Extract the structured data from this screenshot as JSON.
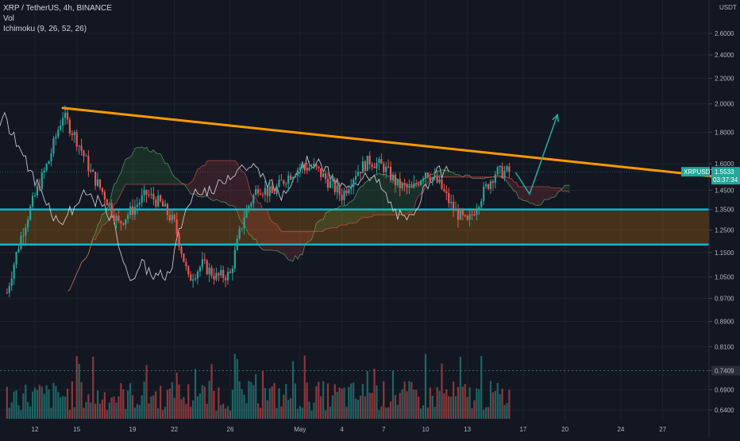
{
  "legend": {
    "symbol_line": "XRP / TetherUS, 4h, BINANCE",
    "volume_label": "Vol",
    "ichimoku_label": "Ichimoku (9, 26, 52, 26)"
  },
  "colors": {
    "background": "#131722",
    "up": "#26a69a",
    "down": "#ef5350",
    "trendline": "#ff9800",
    "support": "#00bcd4",
    "arrow": "#26a69a",
    "zone_fill": "#ff9800"
  },
  "price_tags": {
    "currency": "USDT",
    "symbol": "XRPUSDT",
    "last_price": "1.5533",
    "countdown": "03:37:34",
    "volume_level": "0.7409"
  },
  "chart_data": {
    "type": "candlestick",
    "title": "XRP / TetherUS, 4h, BINANCE",
    "y_scale": "log",
    "y_ticks": [
      "2.6000",
      "2.4000",
      "2.2000",
      "2.0000",
      "1.8000",
      "1.6000",
      "1.4500",
      "1.3500",
      "1.2500",
      "1.1500",
      "1.0500",
      "0.9700",
      "0.8900",
      "0.8100",
      "0.7409",
      "0.6900",
      "0.6400"
    ],
    "y_tick_values": [
      2.6,
      2.4,
      2.2,
      2.0,
      1.8,
      1.6,
      1.45,
      1.35,
      1.25,
      1.15,
      1.05,
      0.97,
      0.89,
      0.81,
      0.7409,
      0.69,
      0.64
    ],
    "x_ticks": [
      "12",
      "15",
      "19",
      "22",
      "26",
      "May",
      "4",
      "7",
      "10",
      "13",
      "17",
      "20",
      "24",
      "27"
    ],
    "last_price": 1.5533,
    "close_path": [
      [
        "Apr 10",
        0.99
      ],
      [
        "Apr 11",
        1.22
      ],
      [
        "Apr 12",
        1.42
      ],
      [
        "Apr 13",
        1.62
      ],
      [
        "Apr 14",
        1.92
      ],
      [
        "Apr 15",
        1.75
      ],
      [
        "Apr 16",
        1.55
      ],
      [
        "Apr 17",
        1.42
      ],
      [
        "Apr 18",
        1.28
      ],
      [
        "Apr 19",
        1.35
      ],
      [
        "Apr 20",
        1.43
      ],
      [
        "Apr 21",
        1.38
      ],
      [
        "Apr 22",
        1.28
      ],
      [
        "Apr 23",
        1.04
      ],
      [
        "Apr 24",
        1.1
      ],
      [
        "Apr 25",
        1.05
      ],
      [
        "Apr 26",
        1.06
      ],
      [
        "Apr 27",
        1.32
      ],
      [
        "Apr 28",
        1.47
      ],
      [
        "Apr 29",
        1.43
      ],
      [
        "Apr 30",
        1.52
      ],
      [
        "May 1",
        1.58
      ],
      [
        "May 2",
        1.58
      ],
      [
        "May 3",
        1.5
      ],
      [
        "May 4",
        1.42
      ],
      [
        "May 5",
        1.55
      ],
      [
        "May 6",
        1.62
      ],
      [
        "May 7",
        1.58
      ],
      [
        "May 8",
        1.48
      ],
      [
        "May 9",
        1.45
      ],
      [
        "May 10",
        1.56
      ],
      [
        "May 11",
        1.48
      ],
      [
        "May 12",
        1.35
      ],
      [
        "May 13",
        1.28
      ],
      [
        "May 14",
        1.42
      ],
      [
        "May 15",
        1.55
      ],
      [
        "May 16",
        1.5533
      ]
    ],
    "annotations": {
      "descending_trendline": {
        "from": [
          "Apr 14",
          1.97
        ],
        "to": [
          "May 27",
          1.52
        ]
      },
      "support_zone": {
        "top": 1.35,
        "bottom": 1.185
      },
      "projection_arrow": [
        [
          "May 16",
          1.55
        ],
        [
          "May 17",
          1.43
        ],
        [
          "May 19",
          1.92
        ]
      ]
    },
    "series": [
      {
        "name": "Vol",
        "type": "bar"
      },
      {
        "name": "Ichimoku (9, 26, 52, 26)",
        "type": "cloud"
      }
    ]
  }
}
